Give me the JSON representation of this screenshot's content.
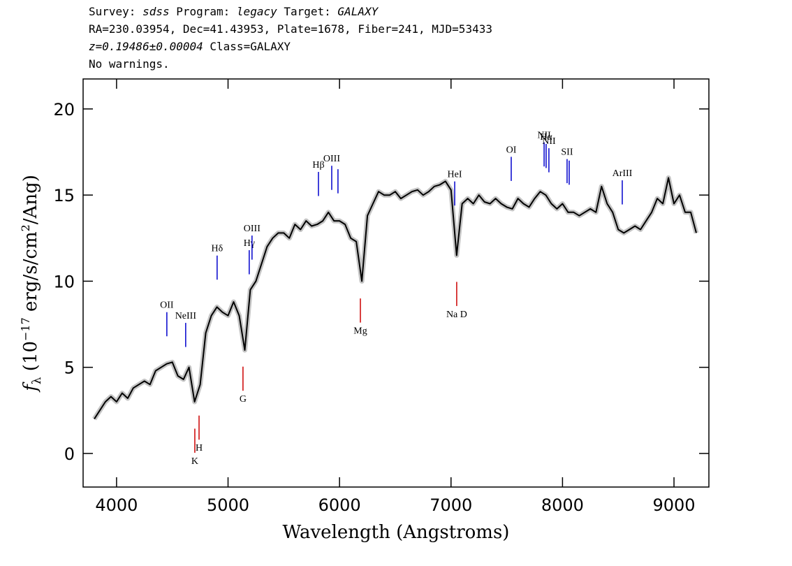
{
  "header": {
    "line1": [
      "Survey: ",
      "sdss",
      " Program: ",
      "legacy",
      " Target: ",
      "GALAXY"
    ],
    "line2": "RA=230.03954, Dec=41.43953, Plate=1678, Fiber=241, MJD=53433",
    "line3": [
      "z=0.19486±0.00004",
      " Class=GALAXY"
    ],
    "line4": "No warnings."
  },
  "chart_data": {
    "type": "line",
    "xlabel": "Wavelength (Angstroms)",
    "ylabel": [
      "f",
      "λ",
      " (10",
      "−17",
      " erg/s/cm",
      "2",
      "/Ang)"
    ],
    "xlim": [
      3700,
      9313
    ],
    "xticks": [
      4000,
      5000,
      6000,
      7000,
      8000,
      9000
    ],
    "ylim": [
      -1.95,
      21.74
    ],
    "yticks": [
      0,
      5,
      10,
      15,
      20
    ],
    "x": [
      3800,
      3850,
      3900,
      3950,
      4000,
      4050,
      4100,
      4150,
      4200,
      4250,
      4300,
      4350,
      4400,
      4450,
      4500,
      4550,
      4600,
      4650,
      4700,
      4750,
      4800,
      4850,
      4900,
      4950,
      5000,
      5050,
      5100,
      5150,
      5200,
      5250,
      5300,
      5350,
      5400,
      5450,
      5500,
      5550,
      5600,
      5650,
      5700,
      5750,
      5800,
      5850,
      5900,
      5950,
      6000,
      6050,
      6100,
      6150,
      6200,
      6250,
      6300,
      6350,
      6400,
      6450,
      6500,
      6550,
      6600,
      6650,
      6700,
      6750,
      6800,
      6850,
      6900,
      6950,
      7000,
      7050,
      7100,
      7150,
      7200,
      7250,
      7300,
      7350,
      7400,
      7450,
      7500,
      7550,
      7600,
      7650,
      7700,
      7750,
      7800,
      7850,
      7900,
      7950,
      8000,
      8050,
      8100,
      8150,
      8200,
      8250,
      8300,
      8350,
      8400,
      8450,
      8500,
      8550,
      8600,
      8650,
      8700,
      8750,
      8800,
      8850,
      8900,
      8950,
      9000,
      9050,
      9100,
      9150,
      9200
    ],
    "series": [
      {
        "color": "#000000",
        "values": [
          2.0,
          2.5,
          3.0,
          3.3,
          3.0,
          3.5,
          3.2,
          3.8,
          4.0,
          4.2,
          4.0,
          4.8,
          5.0,
          5.2,
          5.3,
          4.5,
          4.3,
          5.0,
          3.0,
          4.0,
          7.0,
          8.0,
          8.5,
          8.2,
          8.0,
          8.8,
          8.0,
          6.0,
          9.5,
          10.0,
          11.0,
          12.0,
          12.5,
          12.8,
          12.8,
          12.5,
          13.3,
          13.0,
          13.5,
          13.2,
          13.3,
          13.5,
          14.0,
          13.5,
          13.5,
          13.3,
          12.5,
          12.3,
          10.0,
          13.8,
          14.5,
          15.2,
          15.0,
          15.0,
          15.2,
          14.8,
          15.0,
          15.2,
          15.3,
          15.0,
          15.2,
          15.5,
          15.6,
          15.8,
          15.3,
          11.5,
          14.5,
          14.8,
          14.5,
          15.0,
          14.6,
          14.5,
          14.8,
          14.5,
          14.3,
          14.2,
          14.8,
          14.5,
          14.3,
          14.8,
          15.2,
          15.0,
          14.5,
          14.2,
          14.5,
          14.0,
          14.0,
          13.8,
          14.0,
          14.2,
          14.0,
          15.5,
          14.5,
          14.0,
          13.0,
          12.8,
          13.0,
          13.2,
          13.0,
          13.5,
          14.0,
          14.8,
          14.5,
          16.0,
          14.5,
          15.0,
          14.0,
          14.0,
          12.8
        ]
      }
    ],
    "emission_lines": {
      "color": "#0000cc",
      "labels": [
        "OII",
        "NeIII",
        "Hδ",
        "Hγ",
        "OIII",
        "Hβ",
        "OIII",
        null,
        "HeI",
        "OI",
        "NII",
        "Hα",
        "NII",
        "SII",
        null,
        "ArIII"
      ],
      "x": [
        4451,
        4620,
        4902,
        5190,
        5215,
        5811,
        5930,
        5986,
        7033,
        7540,
        7835,
        7853,
        7878,
        8041,
        8060,
        8536
      ]
    },
    "absorption_lines": {
      "color": "#cc0000",
      "labels": [
        "K",
        "H",
        "G",
        "Mg",
        "Na D"
      ],
      "x": [
        4702,
        4740,
        5134,
        6187,
        7051
      ]
    }
  }
}
